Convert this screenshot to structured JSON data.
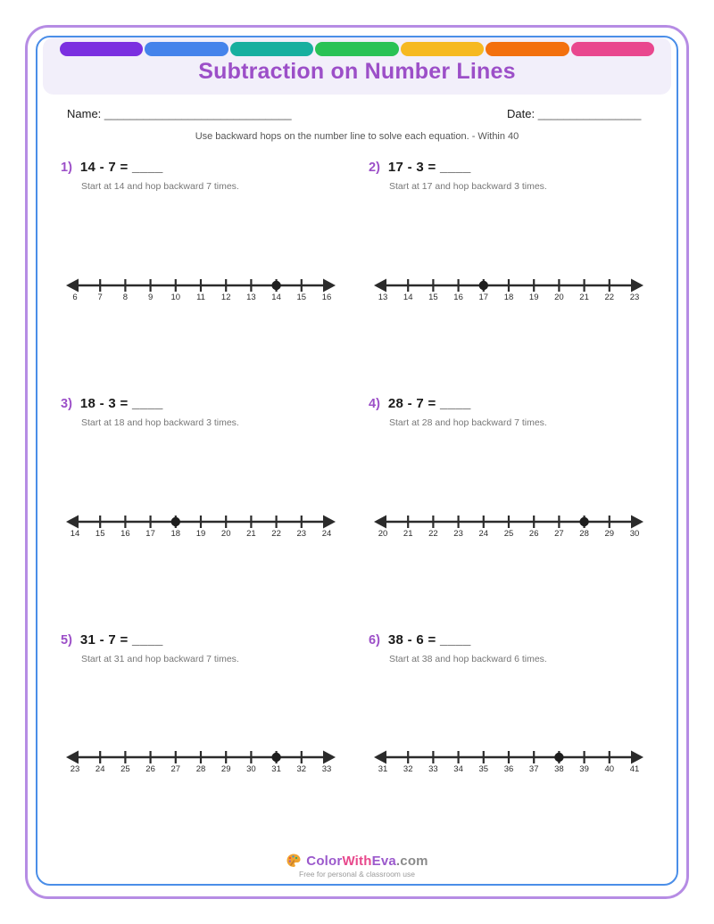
{
  "page": {
    "title": "Subtraction on Number Lines",
    "name_label": "Name:",
    "name_line": "_____________________________",
    "date_label": "Date:",
    "date_line": "________________",
    "instruction": "Use backward hops on the number line to solve each equation. - Within 40"
  },
  "colors": {
    "outer_border": "#b68ce4",
    "inner_border": "#4a8ee8",
    "header_bg": "#f2effa",
    "title": "#9c4fc8",
    "problem_number": "#9c4fc8",
    "text_dark": "#1a1a1a",
    "hint_gray": "#777777",
    "line_color": "#2b2b2b",
    "brand_purple": "#9b59cc",
    "brand_pink": "#e8498c",
    "brand_gray": "#8a8a8a",
    "tagline_gray": "#9a9a9a",
    "bar_segments": [
      "#7b2fe0",
      "#4583eb",
      "#17af9f",
      "#2ac255",
      "#f6b921",
      "#f3700e",
      "#e9478e"
    ]
  },
  "problems": [
    {
      "num": "1)",
      "equation": "14 - 7 = ____",
      "hint": "Start at 14 and hop backward 7 times.",
      "number_line": {
        "start": 6,
        "end": 16,
        "dot": 14
      }
    },
    {
      "num": "2)",
      "equation": "17 - 3 = ____",
      "hint": "Start at 17 and hop backward 3 times.",
      "number_line": {
        "start": 13,
        "end": 23,
        "dot": 17
      }
    },
    {
      "num": "3)",
      "equation": "18 - 3 = ____",
      "hint": "Start at 18 and hop backward 3 times.",
      "number_line": {
        "start": 14,
        "end": 24,
        "dot": 18
      }
    },
    {
      "num": "4)",
      "equation": "28 - 7 = ____",
      "hint": "Start at 28 and hop backward 7 times.",
      "number_line": {
        "start": 20,
        "end": 30,
        "dot": 28
      }
    },
    {
      "num": "5)",
      "equation": "31 - 7 = ____",
      "hint": "Start at 31 and hop backward 7 times.",
      "number_line": {
        "start": 23,
        "end": 33,
        "dot": 31
      }
    },
    {
      "num": "6)",
      "equation": "38 - 6 = ____",
      "hint": "Start at 38 and hop backward 6 times.",
      "number_line": {
        "start": 31,
        "end": 41,
        "dot": 38
      }
    }
  ],
  "footer": {
    "brand": {
      "color": "Color",
      "with": "With",
      "eva": "Eva",
      "domain": ".com"
    },
    "tagline": "Free for personal & classroom use",
    "icon": "palette-icon"
  }
}
